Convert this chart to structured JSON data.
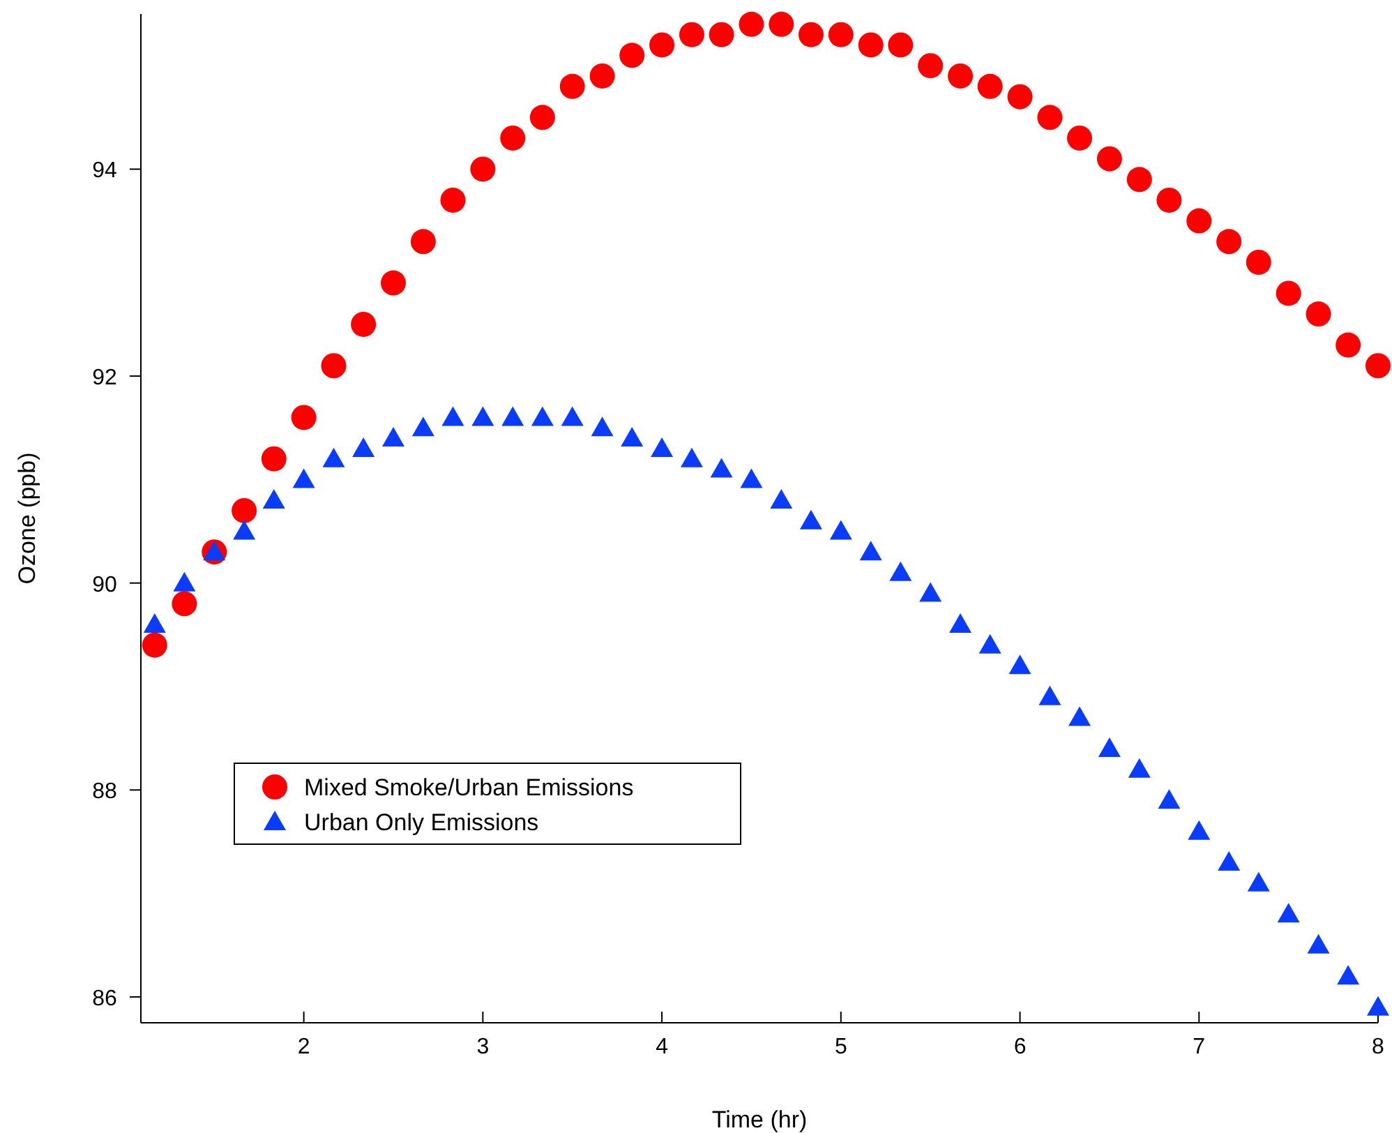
{
  "chart_data": {
    "type": "scatter",
    "xlabel": "Time (hr)",
    "ylabel": "Ozone (ppb)",
    "x": [
      1.167,
      1.333,
      1.5,
      1.667,
      1.833,
      2,
      2.167,
      2.333,
      2.5,
      2.667,
      2.833,
      3,
      3.167,
      3.333,
      3.5,
      3.667,
      3.833,
      4,
      4.167,
      4.333,
      4.5,
      4.667,
      4.833,
      5,
      5.167,
      5.333,
      5.5,
      5.667,
      5.833,
      6,
      6.167,
      6.333,
      6.5,
      6.667,
      6.833,
      7,
      7.167,
      7.333,
      7.5,
      7.667,
      7.833,
      8
    ],
    "series": [
      {
        "name": "Mixed Smoke/Urban Emissions",
        "color": "#ff0000",
        "marker": "circle",
        "values": [
          89.4,
          89.8,
          90.3,
          90.7,
          91.2,
          91.6,
          92.1,
          92.5,
          92.9,
          93.3,
          93.7,
          94.0,
          94.3,
          94.5,
          94.8,
          94.9,
          95.1,
          95.2,
          95.3,
          95.3,
          95.4,
          95.4,
          95.3,
          95.3,
          95.2,
          95.2,
          95.0,
          94.9,
          94.8,
          94.7,
          94.5,
          94.3,
          94.1,
          93.9,
          93.7,
          93.5,
          93.3,
          93.1,
          92.8,
          92.6,
          92.3,
          92.1
        ]
      },
      {
        "name": "Urban Only Emissions",
        "color": "#0a3cff",
        "marker": "triangle",
        "values": [
          89.6,
          90.0,
          90.3,
          90.5,
          90.8,
          91.0,
          91.2,
          91.3,
          91.4,
          91.5,
          91.6,
          91.6,
          91.6,
          91.6,
          91.6,
          91.5,
          91.4,
          91.3,
          91.2,
          91.1,
          91.0,
          90.8,
          90.6,
          90.5,
          90.3,
          90.1,
          89.9,
          89.6,
          89.4,
          89.2,
          88.9,
          88.7,
          88.4,
          88.2,
          87.9,
          87.6,
          87.3,
          87.1,
          86.8,
          86.5,
          86.2,
          85.9
        ]
      }
    ],
    "xlim": [
      1.09,
      8.0
    ],
    "xticks": [
      2,
      3,
      4,
      5,
      6,
      7,
      8
    ],
    "ylim": [
      85.75,
      95.5
    ],
    "yticks": [
      86,
      88,
      90,
      92,
      94
    ],
    "grid": false,
    "legend": "bottom left"
  }
}
